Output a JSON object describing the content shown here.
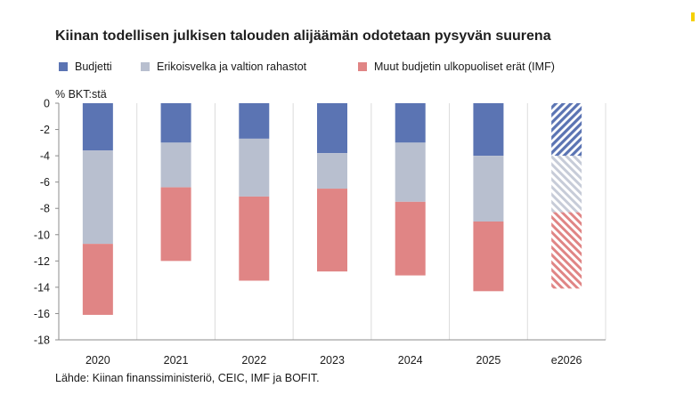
{
  "chart_data": {
    "type": "bar",
    "stacked": true,
    "title": "Kiinan todellisen julkisen talouden alijäämän odotetaan pysyvän suurena",
    "ylabel": "% BKT:stä",
    "source": "Lähde: Kiinan finanssiministeriö, CEIC, IMF ja BOFIT.",
    "ylim": [
      -18,
      0
    ],
    "yticks": [
      0,
      -2,
      -4,
      -6,
      -8,
      -10,
      -12,
      -14,
      -16,
      -18
    ],
    "categories": [
      "2020",
      "2021",
      "2022",
      "2023",
      "2024",
      "2025",
      "e2026"
    ],
    "forecast_categories": [
      "e2026"
    ],
    "series": [
      {
        "name": "Budjetti",
        "color": "#5b74b3",
        "values": [
          -3.6,
          -3.0,
          -2.7,
          -3.8,
          -3.0,
          -4.0,
          -4.0
        ]
      },
      {
        "name": "Erikoisvelka ja valtion rahastot",
        "color": "#b8bfcf",
        "values": [
          -7.1,
          -3.4,
          -4.4,
          -2.7,
          -4.5,
          -5.0,
          -4.3
        ]
      },
      {
        "name": "Muut budjetin ulkopuoliset erät (IMF)",
        "color": "#e08585",
        "values": [
          -5.4,
          -5.6,
          -6.4,
          -6.3,
          -5.6,
          -5.3,
          -5.8
        ]
      }
    ]
  }
}
